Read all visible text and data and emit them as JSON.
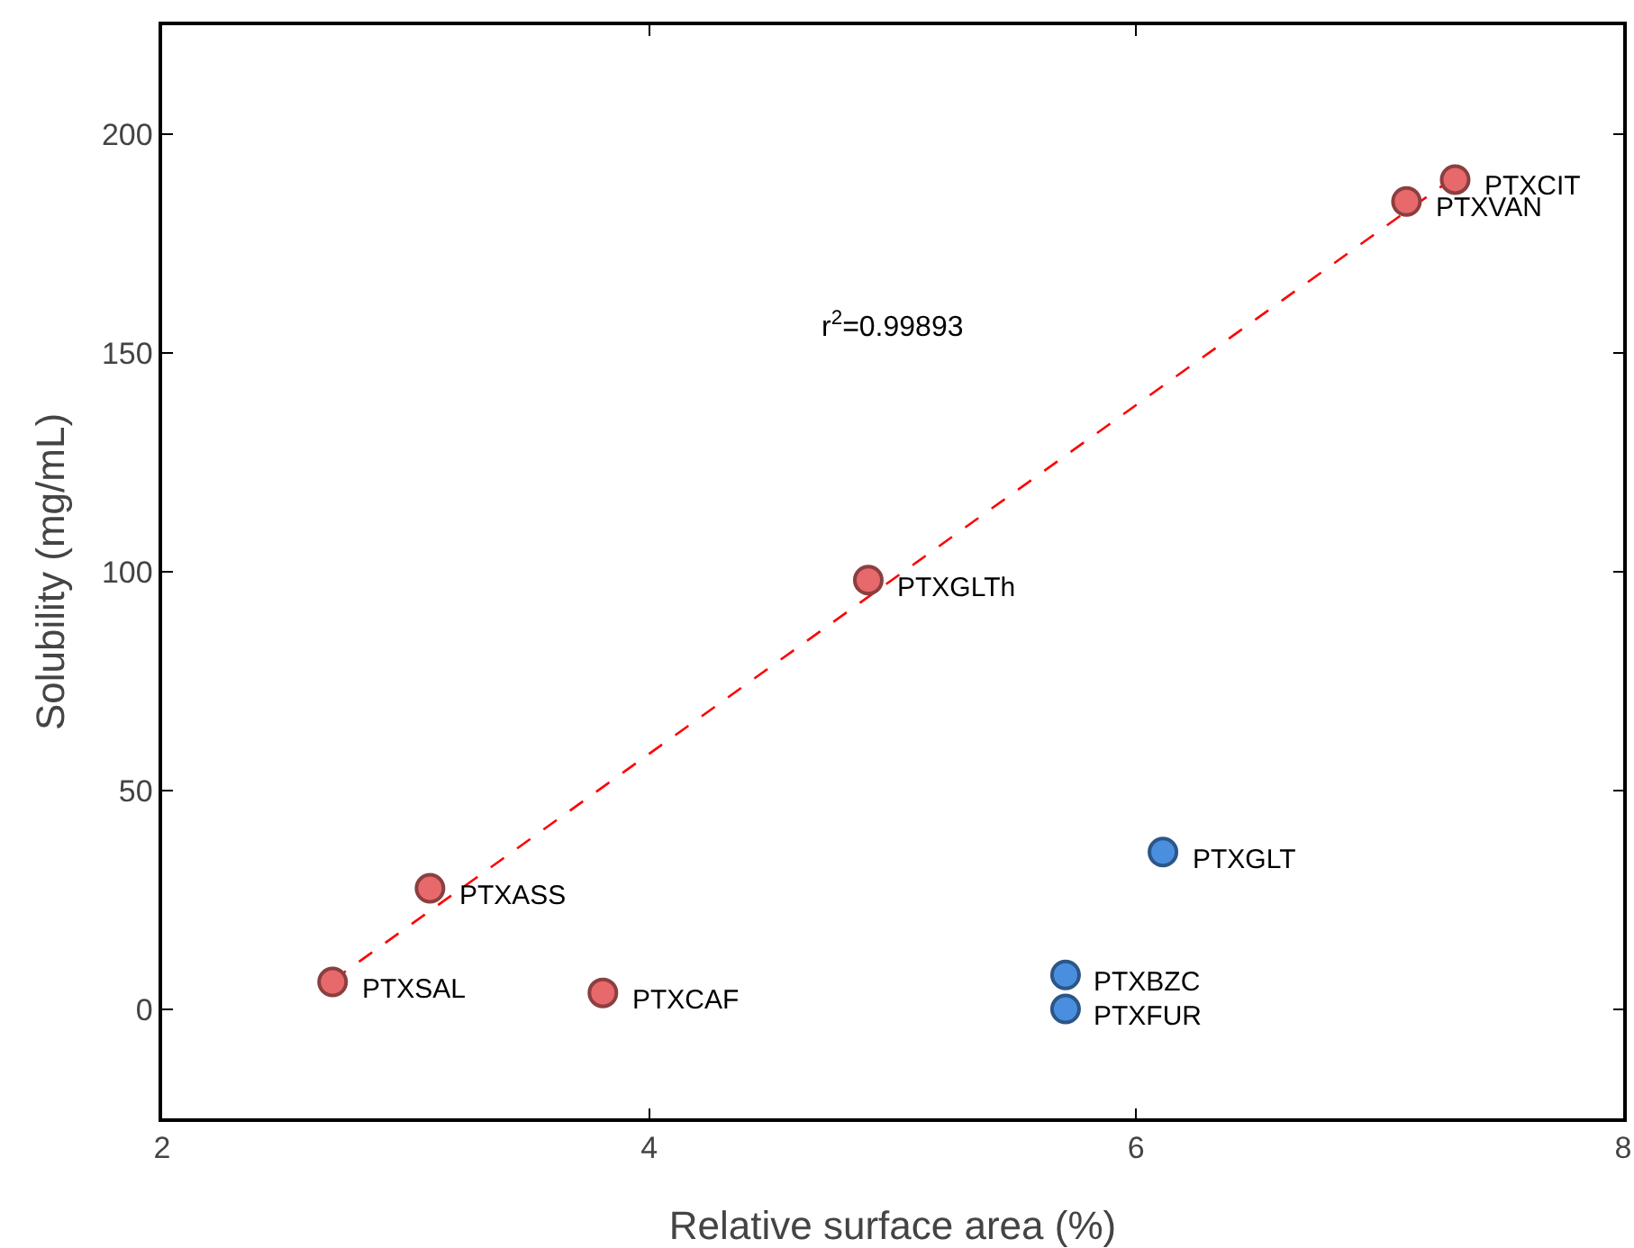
{
  "chart_data": {
    "type": "scatter",
    "xlabel": "Relative surface area (%)",
    "ylabel": "Solubility (mg/mL)",
    "xlim": [
      2,
      8
    ],
    "xticks": [
      2,
      4,
      6,
      8
    ],
    "ylim": [
      -25,
      225
    ],
    "yticks": [
      0,
      50,
      100,
      150,
      200
    ],
    "grid": false,
    "series": [
      {
        "color": "#e8696b",
        "marker": "circle",
        "x": [
          2.7,
          3.1,
          3.81,
          4.9,
          7.11,
          7.31
        ],
        "values": [
          6.2,
          27.6,
          3.7,
          98.1,
          184.7,
          189.7
        ]
      },
      {
        "color": "#4a8fdf",
        "marker": "circle",
        "x": [
          6.11,
          5.71,
          5.71
        ],
        "values": [
          35.9,
          7.8,
          0
        ]
      },
      {
        "type": "line",
        "color": "#ff0000",
        "line_style": "dashed",
        "x": [
          2.7,
          7.3
        ],
        "values": [
          6.5,
          190
        ]
      }
    ],
    "annotations": [
      {
        "text": "PTXSAL",
        "x": 2.7,
        "y": 6.2
      },
      {
        "text": "PTXASS",
        "x": 3.1,
        "y": 27.6
      },
      {
        "text": "PTXCAF",
        "x": 3.81,
        "y": 3.7
      },
      {
        "text": "PTXGLTh",
        "x": 4.9,
        "y": 98.1
      },
      {
        "text": "PTXVAN",
        "x": 7.11,
        "y": 184.7
      },
      {
        "text": "PTXCIT",
        "x": 7.31,
        "y": 189.7
      },
      {
        "text": "PTXGLT",
        "x": 6.11,
        "y": 35.9
      },
      {
        "text": "PTXBZC",
        "x": 5.71,
        "y": 7.8
      },
      {
        "text": "PTXFUR",
        "x": 5.71,
        "y": 0
      },
      "r$^{2}$=0.99893"
    ]
  }
}
